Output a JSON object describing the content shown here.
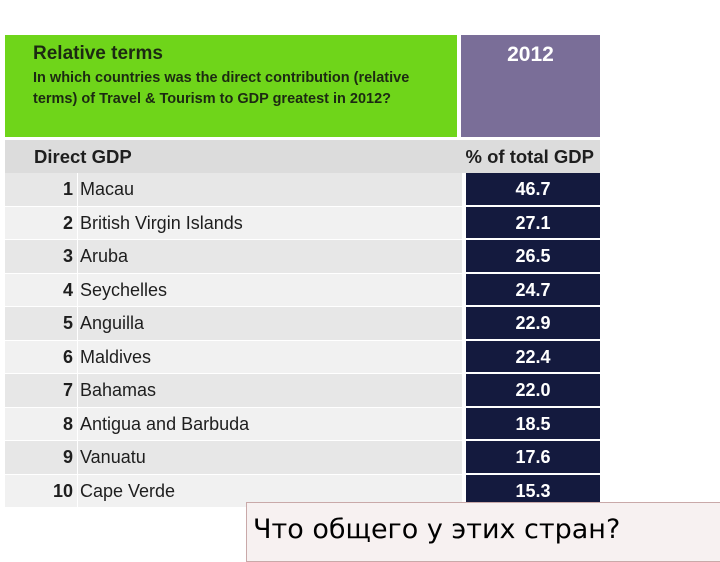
{
  "header": {
    "title": "Relative terms",
    "question": "In which countries was the direct contribution (relative terms) of Travel & Tourism to GDP greatest in 2012?",
    "year": "2012"
  },
  "columns": {
    "left": "Direct GDP",
    "right": "% of total GDP"
  },
  "rows": [
    {
      "rank": "1",
      "country": "Macau",
      "value": "46.7"
    },
    {
      "rank": "2",
      "country": "British Virgin Islands",
      "value": "27.1"
    },
    {
      "rank": "3",
      "country": "Aruba",
      "value": "26.5"
    },
    {
      "rank": "4",
      "country": "Seychelles",
      "value": "24.7"
    },
    {
      "rank": "5",
      "country": "Anguilla",
      "value": "22.9"
    },
    {
      "rank": "6",
      "country": "Maldives",
      "value": "22.4"
    },
    {
      "rank": "7",
      "country": "Bahamas",
      "value": "22.0"
    },
    {
      "rank": "8",
      "country": "Antigua and Barbuda",
      "value": "18.5"
    },
    {
      "rank": "9",
      "country": "Vanuatu",
      "value": "17.6"
    },
    {
      "rank": "10",
      "country": "Cape Verde",
      "value": "15.3"
    }
  ],
  "caption": "Что общего у этих стран?",
  "colors": {
    "header_green": "#6fd51a",
    "year_purple": "#7a6e98",
    "value_navy": "#141a3e"
  }
}
